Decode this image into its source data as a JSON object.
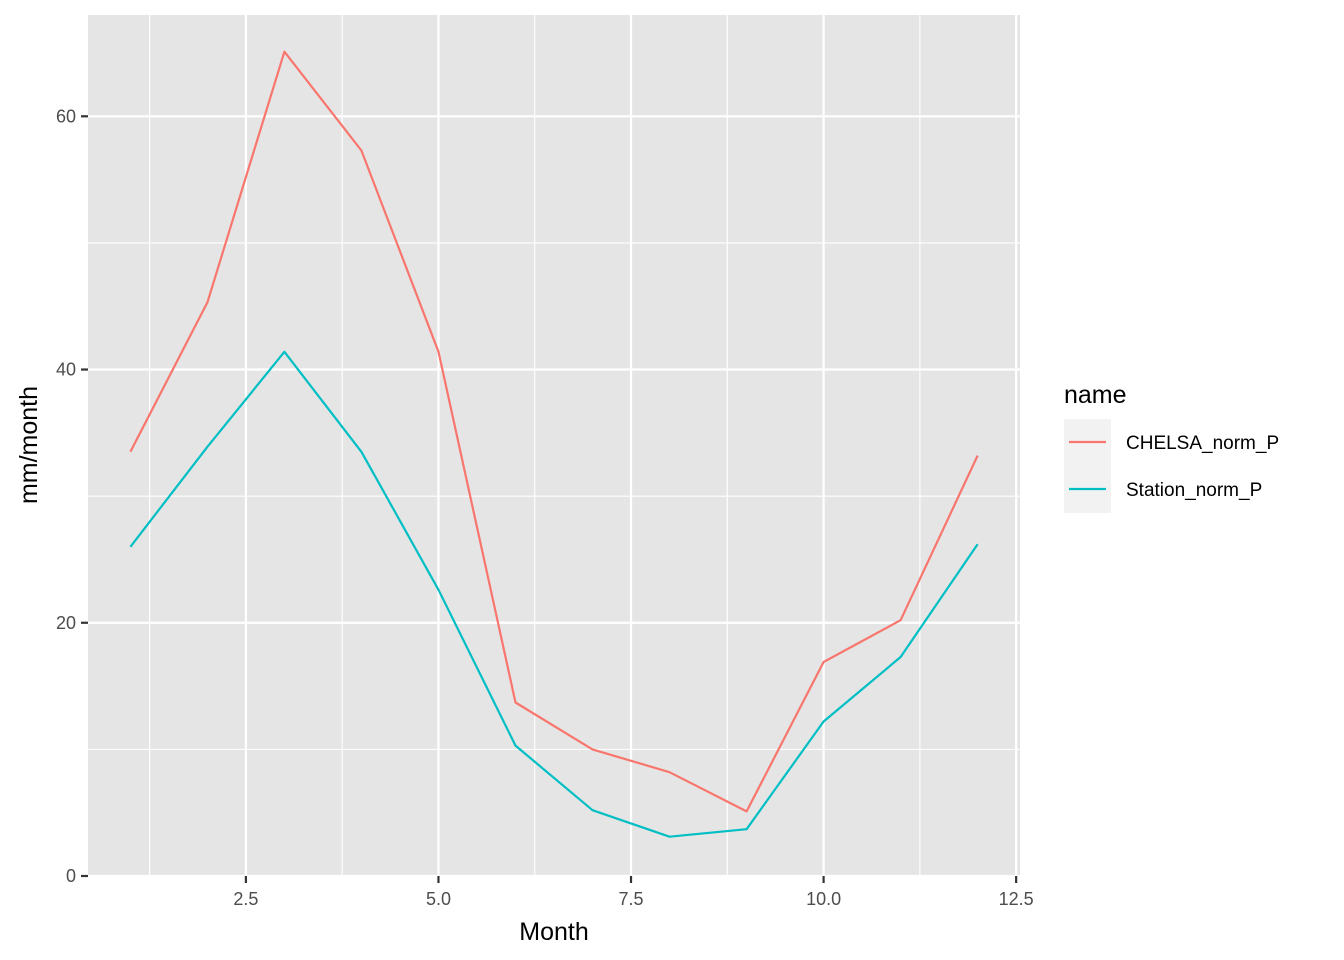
{
  "chart_data": {
    "type": "line",
    "xlabel": "Month",
    "ylabel": "mm/month",
    "xlim": [
      0.45,
      12.55
    ],
    "ylim": [
      0,
      68
    ],
    "x_ticks": [
      2.5,
      5.0,
      7.5,
      10.0,
      12.5
    ],
    "x_tick_labels": [
      "2.5",
      "5.0",
      "7.5",
      "10.0",
      "12.5"
    ],
    "y_ticks": [
      0,
      20,
      40,
      60
    ],
    "y_tick_labels": [
      "0",
      "20",
      "40",
      "60"
    ],
    "grid": true,
    "legend": {
      "title": "name",
      "position": "right"
    },
    "x": [
      1,
      2,
      3,
      4,
      5,
      6,
      7,
      8,
      9,
      10,
      11,
      12
    ],
    "series": [
      {
        "name": "CHELSA_norm_P",
        "color": "#F8766D",
        "values": [
          33.5,
          45.3,
          65.1,
          57.3,
          41.4,
          13.7,
          10.0,
          8.2,
          5.1,
          16.9,
          20.2,
          33.2
        ]
      },
      {
        "name": "Station_norm_P",
        "color": "#00BFC4",
        "values": [
          26.0,
          33.9,
          41.4,
          33.5,
          22.6,
          10.3,
          5.2,
          3.1,
          3.7,
          12.2,
          17.3,
          26.2
        ]
      }
    ],
    "colors": {
      "panel": "#E5E5E5",
      "grid": "#FFFFFF",
      "axis_text": "#4D4D4D",
      "tick": "#333333"
    }
  }
}
